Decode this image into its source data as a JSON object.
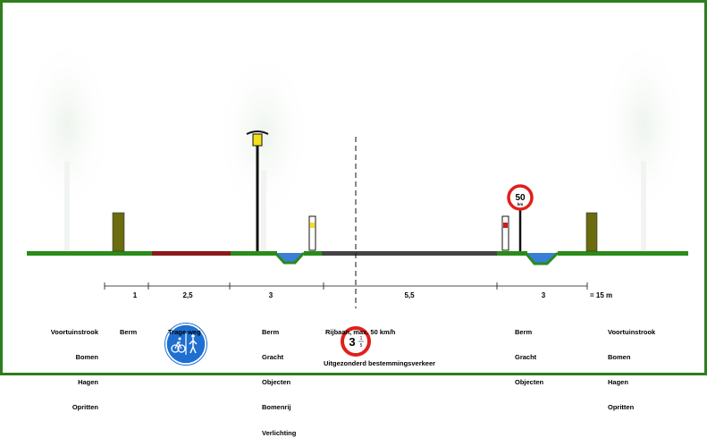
{
  "dimensions": [
    "1",
    "2,5",
    "3",
    "5,5",
    "3"
  ],
  "total": "= 15 m",
  "zones": {
    "voortuin_left": [
      "Voortuinstrook",
      "Bomen",
      "Hagen",
      "Opritten"
    ],
    "berm1": [
      "Berm"
    ],
    "trage_weg": [
      "Trage weg"
    ],
    "berm2": [
      "Berm",
      "Gracht",
      "Objecten",
      "Bomenrij",
      "Verlichting"
    ],
    "rijbaan": [
      "Rijbaan, max. 50 km/h"
    ],
    "berm3": [
      "Berm",
      "Gracht",
      "Objecten"
    ],
    "voortuin_right": [
      "Voortuinstrook",
      "Bomen",
      "Hagen",
      "Opritten"
    ]
  },
  "speed_sign": {
    "value": "50",
    "unit": "km"
  },
  "zone_sign": {
    "value": "3",
    "frac_top": "1",
    "frac_bottom": "5"
  },
  "zone_sign_caption": "Uitgezonderd bestemmingsverkeer",
  "colors": {
    "frame": "#2e7d1f",
    "berm": "#2a8a1a",
    "trage_weg": "#8b1a1a",
    "rijbaan": "#444444",
    "gracht": "#3a7fd6",
    "paal": "#6b6b10",
    "sign_red": "#e0201a",
    "bike_sign_blue": "#1e6fd1"
  },
  "icons": [
    "tree-icon",
    "street-lamp-icon",
    "bike-pedestrian-sign-icon",
    "speed-limit-sign-icon",
    "zone-sign-icon"
  ]
}
